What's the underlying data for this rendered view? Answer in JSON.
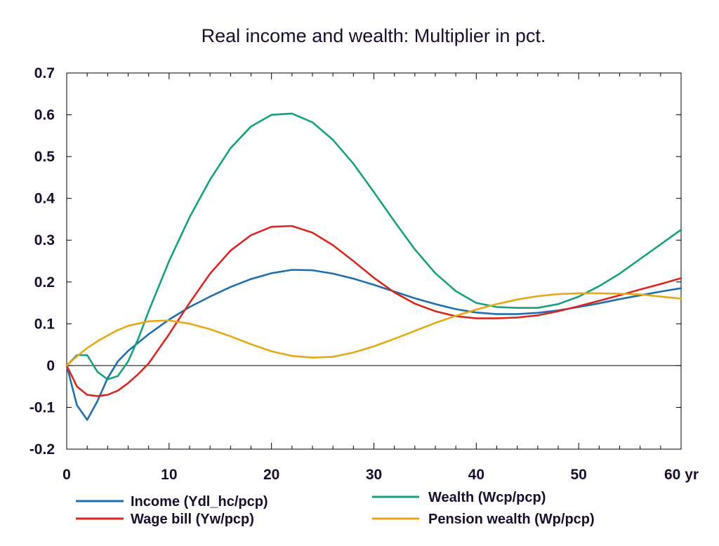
{
  "chart_data": {
    "type": "line",
    "title": "Real income and wealth: Multiplier in pct.",
    "xlabel": "",
    "ylabel": "",
    "x_unit_label": "yr",
    "xlim": [
      0,
      60
    ],
    "ylim": [
      -0.2,
      0.7
    ],
    "x_ticks": [
      0,
      10,
      20,
      30,
      40,
      50,
      60
    ],
    "x_tick_labels": [
      "0",
      "10",
      "20",
      "30",
      "40",
      "50",
      "60 yr"
    ],
    "y_ticks": [
      -0.2,
      -0.1,
      0,
      0.1,
      0.2,
      0.3,
      0.4,
      0.5,
      0.6,
      0.7
    ],
    "y_tick_labels": [
      "-0.2",
      "-0.1",
      "0",
      "0.1",
      "0.2",
      "0.3",
      "0.4",
      "0.5",
      "0.6",
      "0.7"
    ],
    "zero_line": true,
    "grid": false,
    "legend_position": "bottom",
    "series": [
      {
        "name": "Income (Ydl_hc/pcp)",
        "color": "#1f6fae",
        "x": [
          0,
          1,
          2,
          3,
          4,
          5,
          6,
          8,
          10,
          12,
          14,
          16,
          18,
          20,
          22,
          24,
          26,
          28,
          30,
          32,
          34,
          36,
          38,
          40,
          42,
          44,
          46,
          48,
          50,
          52,
          54,
          56,
          58,
          60
        ],
        "y": [
          0,
          -0.095,
          -0.13,
          -0.085,
          -0.03,
          0.01,
          0.035,
          0.075,
          0.11,
          0.14,
          0.165,
          0.188,
          0.207,
          0.221,
          0.229,
          0.228,
          0.22,
          0.208,
          0.193,
          0.177,
          0.161,
          0.147,
          0.135,
          0.127,
          0.123,
          0.123,
          0.126,
          0.132,
          0.14,
          0.149,
          0.159,
          0.168,
          0.177,
          0.185
        ]
      },
      {
        "name": "Wealth (Wcp/pcp)",
        "color": "#17a07e",
        "x": [
          0,
          1,
          2,
          3,
          4,
          5,
          6,
          7,
          8,
          10,
          12,
          14,
          16,
          18,
          20,
          22,
          24,
          26,
          28,
          30,
          32,
          34,
          36,
          38,
          40,
          42,
          44,
          46,
          48,
          50,
          52,
          54,
          56,
          58,
          60
        ],
        "y": [
          0,
          0.025,
          0.025,
          -0.015,
          -0.033,
          -0.025,
          0.01,
          0.065,
          0.13,
          0.25,
          0.355,
          0.445,
          0.52,
          0.572,
          0.6,
          0.603,
          0.582,
          0.54,
          0.483,
          0.415,
          0.345,
          0.278,
          0.221,
          0.178,
          0.15,
          0.14,
          0.138,
          0.138,
          0.147,
          0.165,
          0.19,
          0.22,
          0.255,
          0.29,
          0.325
        ]
      },
      {
        "name": "Wage bill (Yw/pcp)",
        "color": "#d6281e",
        "x": [
          0,
          1,
          2,
          3,
          4,
          5,
          6,
          7,
          8,
          10,
          12,
          14,
          16,
          18,
          20,
          22,
          24,
          26,
          28,
          30,
          32,
          34,
          36,
          38,
          40,
          42,
          44,
          46,
          48,
          50,
          52,
          54,
          56,
          58,
          60
        ],
        "y": [
          0,
          -0.05,
          -0.07,
          -0.073,
          -0.07,
          -0.06,
          -0.042,
          -0.02,
          0.005,
          0.075,
          0.15,
          0.22,
          0.275,
          0.312,
          0.332,
          0.334,
          0.318,
          0.288,
          0.25,
          0.21,
          0.175,
          0.148,
          0.13,
          0.118,
          0.113,
          0.113,
          0.115,
          0.12,
          0.13,
          0.142,
          0.155,
          0.168,
          0.182,
          0.195,
          0.209
        ]
      },
      {
        "name": "Pension wealth (Wp/pcp)",
        "color": "#e6a817",
        "x": [
          0,
          1,
          2,
          3,
          4,
          5,
          6,
          8,
          10,
          12,
          14,
          16,
          18,
          20,
          22,
          24,
          26,
          28,
          30,
          32,
          34,
          36,
          38,
          40,
          42,
          44,
          46,
          48,
          50,
          52,
          54,
          56,
          58,
          60
        ],
        "y": [
          0,
          0.022,
          0.042,
          0.058,
          0.072,
          0.085,
          0.095,
          0.106,
          0.108,
          0.1,
          0.087,
          0.07,
          0.051,
          0.034,
          0.023,
          0.019,
          0.021,
          0.031,
          0.046,
          0.064,
          0.083,
          0.102,
          0.119,
          0.134,
          0.147,
          0.158,
          0.166,
          0.171,
          0.173,
          0.173,
          0.172,
          0.17,
          0.165,
          0.16
        ]
      }
    ]
  }
}
